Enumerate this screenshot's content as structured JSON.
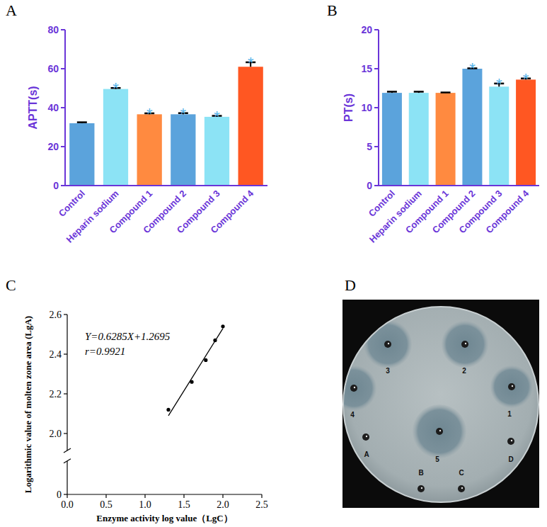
{
  "chart_data": [
    {
      "panel": "A",
      "type": "bar",
      "y_label": "APTT(s)",
      "categories": [
        "Control",
        "Heparin sodium",
        "Compound 1",
        "Compound 2",
        "Compound 3",
        "Compound 4"
      ],
      "values": [
        32.0,
        49.6,
        36.6,
        36.6,
        35.3,
        61.0
      ],
      "errors": [
        0.5,
        0.5,
        0.5,
        0.6,
        0.5,
        2.3
      ],
      "significance": [
        null,
        "*",
        "*",
        "*",
        "*",
        "*"
      ],
      "colors": [
        "#5ba3dc",
        "#8ce3f5",
        "#ff8a40",
        "#5ba3dc",
        "#8ce3f5",
        "#ff5722"
      ],
      "ylim": [
        0,
        80
      ],
      "yticks": [
        0,
        20,
        40,
        60,
        80
      ]
    },
    {
      "panel": "B",
      "type": "bar",
      "y_label": "PT(s)",
      "categories": [
        "Control",
        "Heparin sodium",
        "Compound 1",
        "Compound 2",
        "Compound 3",
        "Compound 4"
      ],
      "values": [
        11.9,
        11.9,
        11.9,
        15.0,
        12.7,
        13.6
      ],
      "errors": [
        0.15,
        0.15,
        0.05,
        0.05,
        0.4,
        0.15
      ],
      "significance": [
        null,
        null,
        null,
        "*",
        "*",
        "*"
      ],
      "colors": [
        "#5ba3dc",
        "#8ce3f5",
        "#ff8a40",
        "#5ba3dc",
        "#8ce3f5",
        "#ff5722"
      ],
      "ylim": [
        0,
        20
      ],
      "yticks": [
        0,
        5,
        10,
        15,
        20
      ]
    },
    {
      "panel": "C",
      "type": "scatter",
      "x_label": "Enzyme activity log value（LgC）",
      "y_label": "Logarithmic value of molten zone area (LgA)",
      "annotations": [
        "Y=0.6285X+1.2695",
        "r=0.9921"
      ],
      "series": [
        {
          "type": "scatter",
          "marker": "circle",
          "color": "#000000",
          "x": [
            1.3,
            1.6,
            1.78,
            1.9,
            2.0
          ],
          "values": [
            2.12,
            2.26,
            2.37,
            2.47,
            2.54
          ]
        },
        {
          "type": "line",
          "line_style": "solid",
          "color": "#000000",
          "x": [
            1.3,
            2.0
          ],
          "values": [
            2.09,
            2.53
          ]
        }
      ],
      "xlim": [
        0,
        2.5
      ],
      "xticks": [
        {
          "value": 0,
          "label": "0.0"
        },
        {
          "value": 0.5,
          "label": "0.5"
        },
        {
          "value": 1,
          "label": "1.0"
        },
        {
          "value": 1.5,
          "label": "1.5"
        },
        {
          "value": 2,
          "label": "2.0"
        },
        {
          "value": 2.5,
          "label": "2.5"
        }
      ],
      "ylim": [
        0,
        2.6
      ],
      "yticks": [
        0,
        {
          "value": 2,
          "label": "2.0"
        },
        {
          "value": 2.2,
          "label": "2.2"
        },
        {
          "value": 2.4,
          "label": "2.4"
        },
        {
          "value": 2.6,
          "label": "2.6"
        }
      ]
    }
  ],
  "plate": {
    "panel": "D",
    "wells": [
      "1",
      "2",
      "3",
      "4",
      "5",
      "A",
      "B",
      "C",
      "D"
    ]
  }
}
